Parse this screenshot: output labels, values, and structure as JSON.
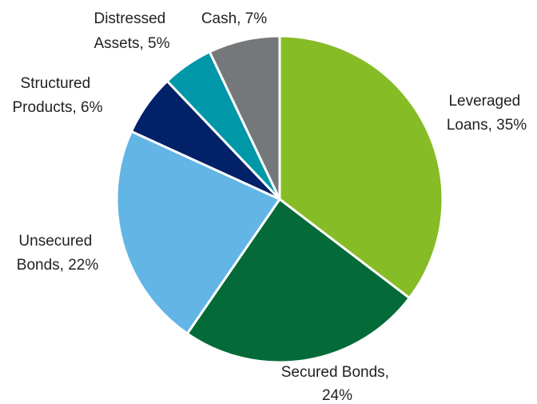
{
  "chart_data": {
    "type": "pie",
    "slices": [
      {
        "label_lines": [
          "Leveraged",
          "Loans, 35%"
        ],
        "name": "Leveraged Loans",
        "value": 35,
        "color": "#86BC25"
      },
      {
        "label_lines": [
          "Secured Bonds,",
          "24%"
        ],
        "name": "Secured Bonds",
        "value": 24,
        "color": "#046A38"
      },
      {
        "label_lines": [
          "Unsecured",
          "Bonds, 22%"
        ],
        "name": "Unsecured Bonds",
        "value": 22,
        "color": "#62B5E5"
      },
      {
        "label_lines": [
          "Structured",
          "Products, 6%"
        ],
        "name": "Structured Products",
        "value": 6,
        "color": "#012169"
      },
      {
        "label_lines": [
          "Distressed",
          "Assets, 5%"
        ],
        "name": "Distressed Assets",
        "value": 5,
        "color": "#0097A9"
      },
      {
        "label_lines": [
          "Cash, 7%"
        ],
        "name": "Cash",
        "value": 7,
        "color": "#75787B"
      }
    ],
    "start_angle_deg": 0,
    "direction": "clockwise",
    "legend": "none",
    "title": ""
  }
}
